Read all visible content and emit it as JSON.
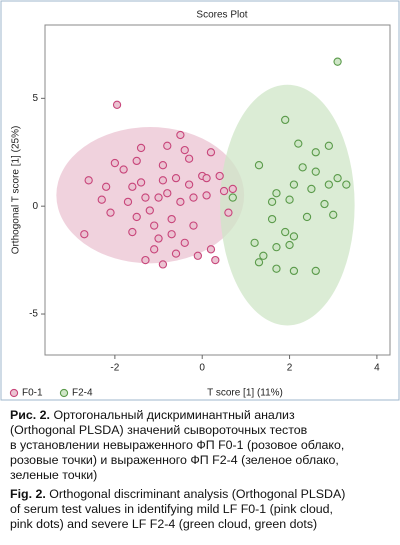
{
  "chart_data": {
    "type": "scatter",
    "title": "Scores Plot",
    "x_label": "T score [1] (11%)",
    "y_label": "Orthogonal T score [1] (25%)",
    "xlim": [
      -3.6,
      4.3
    ],
    "ylim": [
      -6.9,
      8.4
    ],
    "xticks": [
      -2,
      0,
      2,
      4
    ],
    "yticks": [
      -5,
      0,
      5
    ],
    "grid": false,
    "legend": "bottom-left",
    "series": [
      {
        "name": "F0-1",
        "color": "#c8457a",
        "fill": "#ebc3d2",
        "ellipse": {
          "cx": -1.19,
          "cy": 0.51,
          "rx": 2.15,
          "ry": 3.16
        },
        "x": [
          -1.95,
          -2.7,
          -2.6,
          -2.3,
          -2.2,
          -2.1,
          -1.8,
          -1.6,
          -1.5,
          -1.4,
          -1.3,
          -1.2,
          -1.1,
          -1.0,
          -1.1,
          -0.9,
          -0.8,
          -0.8,
          -0.7,
          -0.6,
          -0.5,
          -0.5,
          -0.4,
          -0.3,
          -0.3,
          -0.2,
          -0.1,
          0.0,
          0.1,
          0.2,
          0.3,
          0.4,
          0.5,
          0.6,
          -1.6,
          -1.3,
          -0.9,
          -0.6,
          -1.7,
          -0.9,
          -0.4,
          -1.4,
          0.7,
          -0.7,
          -1.0,
          0.2,
          -2.0,
          0.1,
          -0.2,
          -1.5
        ],
        "values": [
          4.7,
          -1.3,
          1.2,
          0.3,
          0.9,
          -0.3,
          1.7,
          0.9,
          2.1,
          1.1,
          0.4,
          -0.2,
          -0.9,
          -1.5,
          -2.0,
          1.9,
          2.8,
          0.6,
          -0.6,
          1.3,
          3.3,
          0.2,
          -1.7,
          2.2,
          1.0,
          -0.9,
          -2.3,
          1.4,
          0.5,
          -2.0,
          -2.5,
          1.4,
          0.7,
          -0.3,
          -1.2,
          -2.5,
          -2.7,
          -2.2,
          0.2,
          1.2,
          2.6,
          2.7,
          0.8,
          -1.3,
          0.4,
          2.5,
          2.0,
          1.3,
          0.4,
          -0.5
        ]
      },
      {
        "name": "F2-4",
        "color": "#5a9a4a",
        "fill": "#cfe6c7",
        "ellipse": {
          "cx": 1.95,
          "cy": 0.05,
          "rx": 1.54,
          "ry": 5.58
        },
        "x": [
          3.1,
          1.9,
          2.2,
          1.3,
          2.3,
          2.9,
          3.1,
          2.6,
          2.1,
          1.7,
          2.5,
          2.9,
          3.3,
          2.8,
          1.6,
          2.0,
          1.6,
          2.4,
          1.9,
          2.1,
          2.0,
          1.7,
          1.2,
          1.4,
          1.3,
          1.7,
          2.1,
          2.6,
          3.0,
          0.7,
          2.6
        ],
        "values": [
          6.7,
          4.0,
          2.9,
          1.9,
          1.8,
          2.8,
          1.3,
          1.6,
          1.0,
          0.6,
          0.8,
          1.0,
          1.0,
          0.1,
          0.2,
          0.3,
          -0.6,
          -0.5,
          -1.2,
          -1.4,
          -1.8,
          -1.9,
          -1.7,
          -2.3,
          -2.6,
          -2.9,
          -3.0,
          -3.0,
          -0.4,
          0.4,
          2.5
        ]
      }
    ]
  },
  "caption": {
    "ru": {
      "label": "Рис. 2.",
      "lines": [
        "Ортогональный дискриминантный анализ",
        "(Orthogonal PLSDA) значений сывороточных тестов",
        "в установлении невыраженного ФП F0-1 (розовое облако,",
        "розовые точки) и выраженного ФП F2-4 (зеленое облако,",
        "зеленые точки)"
      ]
    },
    "en": {
      "label": "Fig. 2.",
      "lines": [
        "Orthogonal discriminant analysis (Orthogonal PLSDA)",
        "of serum test values in identifying mild LF F0-1 (pink cloud,",
        "pink dots) and severe LF F2-4 (green cloud, green dots)"
      ]
    }
  }
}
